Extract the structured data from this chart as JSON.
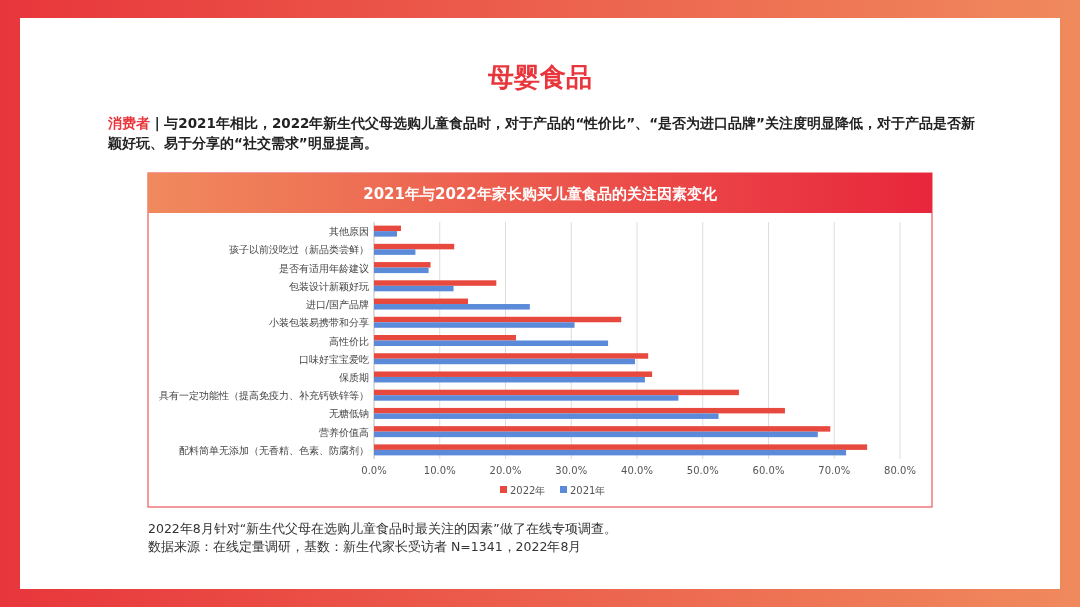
{
  "chart_data": {
    "type": "bar",
    "orientation": "horizontal",
    "title": "母婴食品",
    "subtitle": "2021年与2022年家长购买儿童食品的关注因素变化",
    "annotations": [
      "消费者 | 与2021年相比，2022年新生代父母选购儿童食品时，对于产品的“性价比”、“是否为进口品牌”关注度明显降低，对于产品是否新颖好玩、易于分享的“社交需求”明显提高。",
      "2022年8月针对“新生代父母在选购儿童食品时最关注的因素”做了在线专项调查。",
      "数据来源：在线定量调研，基数：新生代家长受访者 N=1341，2022年8月"
    ],
    "categories": [
      "其他原因",
      "孩子以前没吃过（新品类尝鲜）",
      "是否有适用年龄建议",
      "包装设计新颖好玩",
      "进口/国产品牌",
      "小装包装易携带和分享",
      "高性价比",
      "口味好宝宝爱吃",
      "保质期",
      "具有一定功能性（提高免疫力、补充钙铁锌等）",
      "无糖低钠",
      "营养价值高",
      "配料简单无添加（无香精、色素、防腐剂）"
    ],
    "series": [
      {
        "name": "2022年",
        "color": "#e8493e",
        "values": [
          4.1,
          12.2,
          8.6,
          18.6,
          14.3,
          37.6,
          21.6,
          41.7,
          42.3,
          55.5,
          62.5,
          69.4,
          75.0
        ]
      },
      {
        "name": "2021年",
        "color": "#5b8ad8",
        "values": [
          3.5,
          6.3,
          8.3,
          12.1,
          23.7,
          30.5,
          35.6,
          39.7,
          41.2,
          46.3,
          52.4,
          67.5,
          71.8
        ]
      }
    ],
    "xlim": [
      0,
      80
    ],
    "xticks": [
      {
        "value": 0,
        "label": "0.0%"
      },
      {
        "value": 10,
        "label": "10.0%"
      },
      {
        "value": 20,
        "label": "20.0%"
      },
      {
        "value": 30,
        "label": "30.0%"
      },
      {
        "value": 40,
        "label": "40.0%"
      },
      {
        "value": 50,
        "label": "50.0%"
      },
      {
        "value": 60,
        "label": "60.0%"
      },
      {
        "value": 70,
        "label": "70.0%"
      },
      {
        "value": 80,
        "label": "80.0%"
      }
    ],
    "grid": "x",
    "legend": "bottom"
  }
}
